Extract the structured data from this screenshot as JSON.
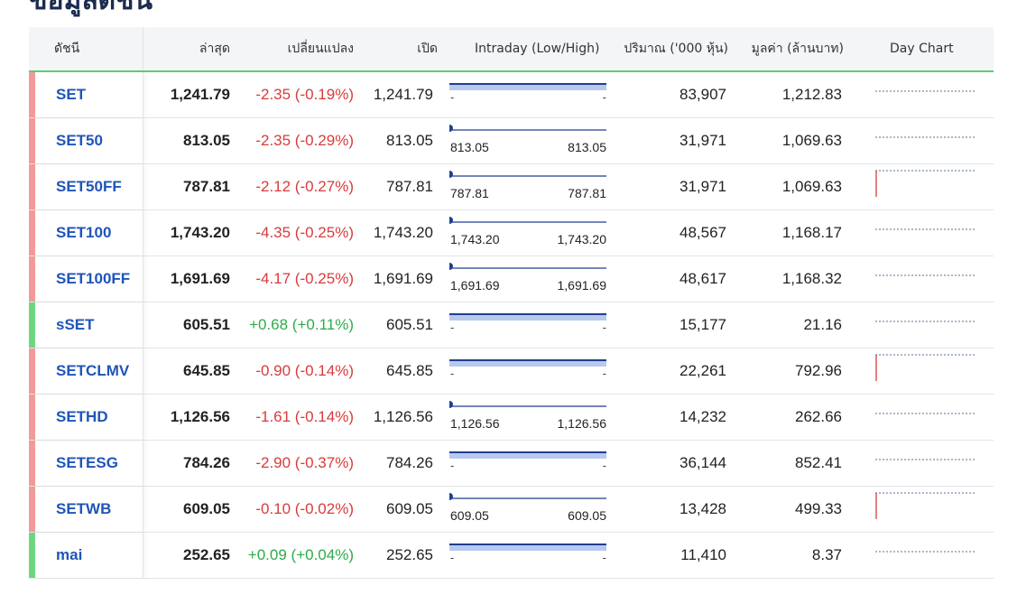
{
  "page": {
    "title": "ข้อมูลดัชนี"
  },
  "colors": {
    "header_underline": "#5fcf6f",
    "negative": "#d83b3b",
    "positive": "#2eaa4a",
    "index_link": "#1f55b8",
    "range_line": "#1f3f8f",
    "range_fill": "#b9c9ee",
    "bar_negative": "#f29a9a",
    "bar_positive": "#6fd67f",
    "daychart_line": "#7a8ea3"
  },
  "table": {
    "headers": {
      "index": "ดัชนี",
      "last": "ล่าสุด",
      "change": "เปลี่ยนแปลง",
      "open": "เปิด",
      "intraday": "Intraday (Low/High)",
      "volume": "ปริมาณ ('000 หุ้น)",
      "value": "มูลค่า (ล้านบาท)",
      "day_chart": "Day Chart"
    },
    "rows": [
      {
        "name": "SET",
        "last": "1,241.79",
        "change": "-2.35 (-0.19%)",
        "direction": "down",
        "open": "1,241.79",
        "range": "bar",
        "low": "-",
        "high": "-",
        "volume": "83,907",
        "value": "1,212.83",
        "spark": "flat"
      },
      {
        "name": "SET50",
        "last": "813.05",
        "change": "-2.35 (-0.29%)",
        "direction": "down",
        "open": "813.05",
        "range": "point",
        "low": "813.05",
        "high": "813.05",
        "volume": "31,971",
        "value": "1,069.63",
        "spark": "flat"
      },
      {
        "name": "SET50FF",
        "last": "787.81",
        "change": "-2.12 (-0.27%)",
        "direction": "down",
        "open": "787.81",
        "range": "point",
        "low": "787.81",
        "high": "787.81",
        "volume": "31,971",
        "value": "1,069.63",
        "spark": "drop"
      },
      {
        "name": "SET100",
        "last": "1,743.20",
        "change": "-4.35 (-0.25%)",
        "direction": "down",
        "open": "1,743.20",
        "range": "point",
        "low": "1,743.20",
        "high": "1,743.20",
        "volume": "48,567",
        "value": "1,168.17",
        "spark": "flat"
      },
      {
        "name": "SET100FF",
        "last": "1,691.69",
        "change": "-4.17 (-0.25%)",
        "direction": "down",
        "open": "1,691.69",
        "range": "point",
        "low": "1,691.69",
        "high": "1,691.69",
        "volume": "48,617",
        "value": "1,168.32",
        "spark": "flat"
      },
      {
        "name": "sSET",
        "last": "605.51",
        "change": "+0.68 (+0.11%)",
        "direction": "up",
        "open": "605.51",
        "range": "bar",
        "low": "-",
        "high": "-",
        "volume": "15,177",
        "value": "21.16",
        "spark": "flat"
      },
      {
        "name": "SETCLMV",
        "last": "645.85",
        "change": "-0.90 (-0.14%)",
        "direction": "down",
        "open": "645.85",
        "range": "bar",
        "low": "-",
        "high": "-",
        "volume": "22,261",
        "value": "792.96",
        "spark": "drop"
      },
      {
        "name": "SETHD",
        "last": "1,126.56",
        "change": "-1.61 (-0.14%)",
        "direction": "down",
        "open": "1,126.56",
        "range": "point",
        "low": "1,126.56",
        "high": "1,126.56",
        "volume": "14,232",
        "value": "262.66",
        "spark": "flat"
      },
      {
        "name": "SETESG",
        "last": "784.26",
        "change": "-2.90 (-0.37%)",
        "direction": "down",
        "open": "784.26",
        "range": "bar",
        "low": "-",
        "high": "-",
        "volume": "36,144",
        "value": "852.41",
        "spark": "flat"
      },
      {
        "name": "SETWB",
        "last": "609.05",
        "change": "-0.10 (-0.02%)",
        "direction": "down",
        "open": "609.05",
        "range": "point",
        "low": "609.05",
        "high": "609.05",
        "volume": "13,428",
        "value": "499.33",
        "spark": "drop"
      },
      {
        "name": "mai",
        "last": "252.65",
        "change": "+0.09 (+0.04%)",
        "direction": "up",
        "open": "252.65",
        "range": "bar",
        "low": "-",
        "high": "-",
        "volume": "11,410",
        "value": "8.37",
        "spark": "flat"
      }
    ]
  }
}
